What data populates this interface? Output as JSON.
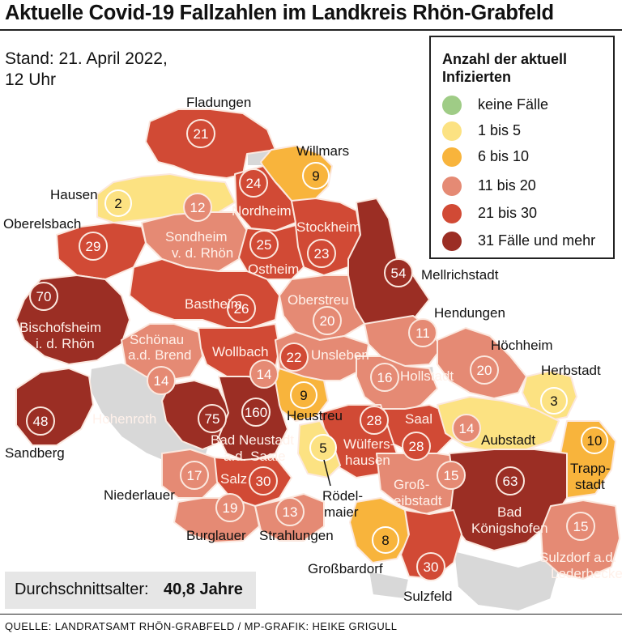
{
  "title": "Aktuelle Covid-19 Fallzahlen im Landkreis Rhön-Grabfeld",
  "stand": [
    "Stand: 21. April 2022,",
    "12 Uhr"
  ],
  "legend": {
    "title": [
      "Anzahl der aktuell",
      "Infizierten"
    ],
    "items": [
      {
        "label": "keine Fälle",
        "color": "#9fcc86"
      },
      {
        "label": "1 bis 5",
        "color": "#fce282"
      },
      {
        "label": "6 bis 10",
        "color": "#f8b43c"
      },
      {
        "label": "11 bis 20",
        "color": "#e58a74"
      },
      {
        "label": "21 bis 30",
        "color": "#d14a35"
      },
      {
        "label": "31 Fälle und mehr",
        "color": "#9b2e24"
      }
    ]
  },
  "average": {
    "label": "Durchschnittsalter:",
    "value": "40,8 Jahre"
  },
  "source": "QUELLE: LANDRATSAMT RHÖN-GRABFELD / MP-GRAFIK: HEIKE GRIGULL",
  "colors": {
    "none": "#9fcc86",
    "c1_5": "#fce282",
    "c6_10": "#f8b43c",
    "c11_20": "#e58a74",
    "c21_30": "#d14a35",
    "c31plus": "#9b2e24",
    "outside": "#d8d8d8"
  },
  "municipalities": [
    {
      "name": "Fladungen",
      "count": "21"
    },
    {
      "name": "Willmars",
      "count": "9"
    },
    {
      "name": "Hausen",
      "count": "2"
    },
    {
      "name": "Nordheim",
      "count": "24"
    },
    {
      "name": "Oberelsbach",
      "count": "29"
    },
    {
      "name": "Sondheim v. d. Rhön",
      "count": "12"
    },
    {
      "name": "Stockheim",
      "count": "23"
    },
    {
      "name": "Ostheim",
      "count": "25"
    },
    {
      "name": "Mellrichstadt",
      "count": "54"
    },
    {
      "name": "Oberstreu",
      "count": "20"
    },
    {
      "name": "Bischofsheim i. d. Rhön",
      "count": "70"
    },
    {
      "name": "Bastheim",
      "count": "26"
    },
    {
      "name": "Hendungen",
      "count": "11"
    },
    {
      "name": "Höchheim",
      "count": "20"
    },
    {
      "name": "Schönau a.d. Brend",
      "count": "14"
    },
    {
      "name": "Wollbach",
      "count": "14"
    },
    {
      "name": "Unsleben",
      "count": "22"
    },
    {
      "name": "Hollstadt",
      "count": "16"
    },
    {
      "name": "Herbstadt",
      "count": "3"
    },
    {
      "name": "Heustreu",
      "count": "9"
    },
    {
      "name": "Sandberg",
      "count": "48"
    },
    {
      "name": "Hohenroth",
      "count": "75"
    },
    {
      "name": "Bad Neustadt a.d. Saale",
      "count": "160"
    },
    {
      "name": "Saal",
      "count": "28"
    },
    {
      "name": "Aubstadt",
      "count": "14"
    },
    {
      "name": "Trappstadt",
      "count": "10"
    },
    {
      "name": "Wülfershausen",
      "count": "28"
    },
    {
      "name": "Rödelmaier",
      "count": "5"
    },
    {
      "name": "Niederlauer",
      "count": "17"
    },
    {
      "name": "Salz",
      "count": "30"
    },
    {
      "name": "Großeibstadt",
      "count": "15"
    },
    {
      "name": "Bad Königshofen",
      "count": "63"
    },
    {
      "name": "Burglauer",
      "count": "19"
    },
    {
      "name": "Strahlungen",
      "count": "13"
    },
    {
      "name": "Sulzdorf a.d. Lederhecke",
      "count": "15"
    },
    {
      "name": "Großbardorf",
      "count": "8"
    },
    {
      "name": "Sulzfeld",
      "count": "30"
    }
  ],
  "labels": {
    "fladungen": "Fladungen",
    "willmars": "Willmars",
    "hausen": "Hausen",
    "oberelsbach": "Oberelsbach",
    "nordheim": "Nordheim",
    "sondheim1": "Sondheim",
    "sondheim2": "v. d. Rhön",
    "stockheim": "Stockheim",
    "ostheim": "Ostheim",
    "mellrichstadt": "Mellrichstadt",
    "oberstreu": "Oberstreu",
    "bastheim": "Bastheim",
    "bischofsheim1": "Bischofsheim",
    "bischofsheim2": "i. d. Rhön",
    "hendungen": "Hendungen",
    "hoechheim": "Höchheim",
    "schoenau1": "Schönau",
    "schoenau2": "a.d. Brend",
    "wollbach": "Wollbach",
    "unsleben": "Unsleben",
    "hollstadt": "Hollstadt",
    "herbstadt": "Herbstadt",
    "heustreu": "Heustreu",
    "sandberg": "Sandberg",
    "hohenroth": "Hohenroth",
    "badneustadt1": "Bad Neustadt",
    "badneustadt2": "a.d. Saale",
    "saal": "Saal",
    "aubstadt": "Aubstadt",
    "trapp1": "Trapp-",
    "trapp2": "stadt",
    "wuelfers1": "Wülfers-",
    "wuelfers2": "hausen",
    "roedel1": "Rödel-",
    "roedel2": "maier",
    "niederlauer": "Niederlauer",
    "salz": "Salz",
    "gross1": "Groß-",
    "gross2": "eibstadt",
    "koenigs1": "Bad",
    "koenigs2": "Königshofen",
    "burglauer": "Burglauer",
    "strahlungen": "Strahlungen",
    "sulzdorf1": "Sulzdorf a.d.",
    "sulzdorf2": "Lederhecke",
    "grossbardorf": "Großbardorf",
    "sulzfeld": "Sulzfeld"
  }
}
